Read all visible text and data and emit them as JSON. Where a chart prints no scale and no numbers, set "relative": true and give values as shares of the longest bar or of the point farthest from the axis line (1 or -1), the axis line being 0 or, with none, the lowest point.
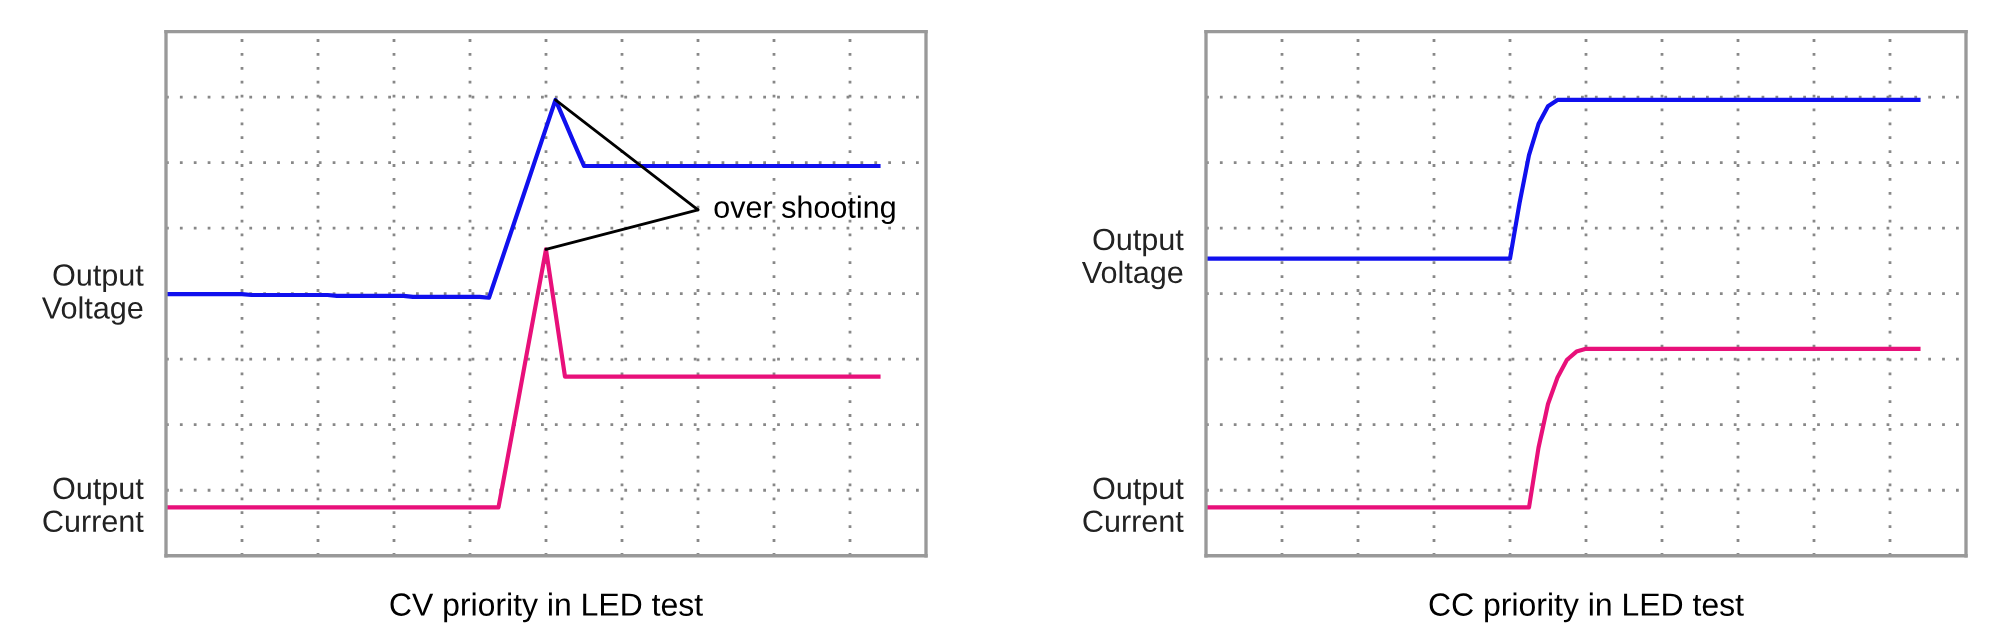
{
  "chart_data": [
    {
      "type": "line",
      "title": "CV priority in LED test",
      "relative": true,
      "grid": true,
      "categories": [
        null,
        null,
        null,
        null,
        null,
        null,
        null,
        null,
        null,
        null,
        null,
        null,
        null,
        null,
        null,
        null,
        null,
        null,
        null,
        null,
        null,
        null,
        null,
        null,
        null,
        null,
        null,
        null,
        null,
        null,
        null,
        null,
        null,
        null,
        null,
        null,
        null,
        null,
        null,
        null,
        null,
        null,
        null,
        null,
        null,
        null,
        null,
        null,
        null,
        null,
        null,
        null,
        null,
        null,
        null,
        null,
        null,
        null,
        null,
        null,
        null,
        null,
        null,
        null,
        null,
        null,
        null,
        null,
        null,
        null,
        null,
        null,
        null,
        null,
        null,
        null
      ],
      "series": [
        {
          "name": "Output\nVoltage",
          "color": "#1010ee",
          "values": [
            0.574,
            0.574,
            0.574,
            0.574,
            0.574,
            0.574,
            0.574,
            0.574,
            0.574,
            0.572,
            0.572,
            0.572,
            0.572,
            0.572,
            0.572,
            0.572,
            0.572,
            0.572,
            0.57,
            0.57,
            0.57,
            0.57,
            0.57,
            0.57,
            0.57,
            0.57,
            0.568,
            0.568,
            0.568,
            0.568,
            0.568,
            0.568,
            0.568,
            0.568,
            0.566,
            0.628,
            0.69,
            0.752,
            0.814,
            0.876,
            0.938,
            1,
            0.952,
            0.903,
            0.855,
            0.855,
            0.855,
            0.855,
            0.855,
            0.855,
            0.855,
            0.855,
            0.855,
            0.855,
            0.855,
            0.855,
            0.855,
            0.855,
            0.855,
            0.855,
            0.855,
            0.855,
            0.855,
            0.855,
            0.855,
            0.855,
            0.855,
            0.855,
            0.855,
            0.855,
            0.855,
            0.855,
            0.855,
            0.855,
            0.855,
            0.855
          ]
        },
        {
          "name": "Output\nCurrent",
          "color": "#e8107a",
          "values": [
            0.106,
            0.106,
            0.106,
            0.106,
            0.106,
            0.106,
            0.106,
            0.106,
            0.106,
            0.106,
            0.106,
            0.106,
            0.106,
            0.106,
            0.106,
            0.106,
            0.106,
            0.106,
            0.106,
            0.106,
            0.106,
            0.106,
            0.106,
            0.106,
            0.106,
            0.106,
            0.106,
            0.106,
            0.106,
            0.106,
            0.106,
            0.106,
            0.106,
            0.106,
            0.106,
            0.106,
            0.219,
            0.332,
            0.446,
            0.559,
            0.672,
            0.533,
            0.393,
            0.393,
            0.393,
            0.393,
            0.393,
            0.393,
            0.393,
            0.393,
            0.393,
            0.393,
            0.393,
            0.393,
            0.393,
            0.393,
            0.393,
            0.393,
            0.393,
            0.393,
            0.393,
            0.393,
            0.393,
            0.393,
            0.393,
            0.393,
            0.393,
            0.393,
            0.393,
            0.393,
            0.393,
            0.393,
            0.393,
            0.393,
            0.393,
            0.393
          ]
        }
      ],
      "annotations": [
        "over shooting"
      ]
    },
    {
      "type": "line",
      "title": "CC priority in LED test",
      "relative": true,
      "grid": true,
      "categories": [
        null,
        null,
        null,
        null,
        null,
        null,
        null,
        null,
        null,
        null,
        null,
        null,
        null,
        null,
        null,
        null,
        null,
        null,
        null,
        null,
        null,
        null,
        null,
        null,
        null,
        null,
        null,
        null,
        null,
        null,
        null,
        null,
        null,
        null,
        null,
        null,
        null,
        null,
        null,
        null,
        null,
        null,
        null,
        null,
        null,
        null,
        null,
        null,
        null,
        null,
        null,
        null,
        null,
        null,
        null,
        null,
        null,
        null,
        null,
        null,
        null,
        null,
        null,
        null,
        null,
        null,
        null,
        null,
        null,
        null,
        null,
        null,
        null,
        null,
        null,
        null
      ],
      "series": [
        {
          "name": "Output\nVoltage",
          "color": "#1010ee",
          "values": [
            0.652,
            0.652,
            0.652,
            0.652,
            0.652,
            0.652,
            0.652,
            0.652,
            0.652,
            0.652,
            0.652,
            0.652,
            0.652,
            0.652,
            0.652,
            0.652,
            0.652,
            0.652,
            0.652,
            0.652,
            0.652,
            0.652,
            0.652,
            0.652,
            0.652,
            0.652,
            0.652,
            0.652,
            0.652,
            0.652,
            0.652,
            0.652,
            0.652,
            0.773,
            0.879,
            0.947,
            0.986,
            1,
            1,
            1,
            1,
            1,
            1,
            1,
            1,
            1,
            1,
            1,
            1,
            1,
            1,
            1,
            1,
            1,
            1,
            1,
            1,
            1,
            1,
            1,
            1,
            1,
            1,
            1,
            1,
            1,
            1,
            1,
            1,
            1,
            1,
            1,
            1,
            1,
            1,
            1
          ]
        },
        {
          "name": "Output\nCurrent",
          "color": "#e8107a",
          "values": [
            0.106,
            0.106,
            0.106,
            0.106,
            0.106,
            0.106,
            0.106,
            0.106,
            0.106,
            0.106,
            0.106,
            0.106,
            0.106,
            0.106,
            0.106,
            0.106,
            0.106,
            0.106,
            0.106,
            0.106,
            0.106,
            0.106,
            0.106,
            0.106,
            0.106,
            0.106,
            0.106,
            0.106,
            0.106,
            0.106,
            0.106,
            0.106,
            0.106,
            0.106,
            0.106,
            0.237,
            0.333,
            0.391,
            0.43,
            0.448,
            0.454,
            0.454,
            0.454,
            0.454,
            0.454,
            0.454,
            0.454,
            0.454,
            0.454,
            0.454,
            0.454,
            0.454,
            0.454,
            0.454,
            0.454,
            0.454,
            0.454,
            0.454,
            0.454,
            0.454,
            0.454,
            0.454,
            0.454,
            0.454,
            0.454,
            0.454,
            0.454,
            0.454,
            0.454,
            0.454,
            0.454,
            0.454,
            0.454,
            0.454,
            0.454,
            0.454
          ]
        }
      ]
    }
  ]
}
